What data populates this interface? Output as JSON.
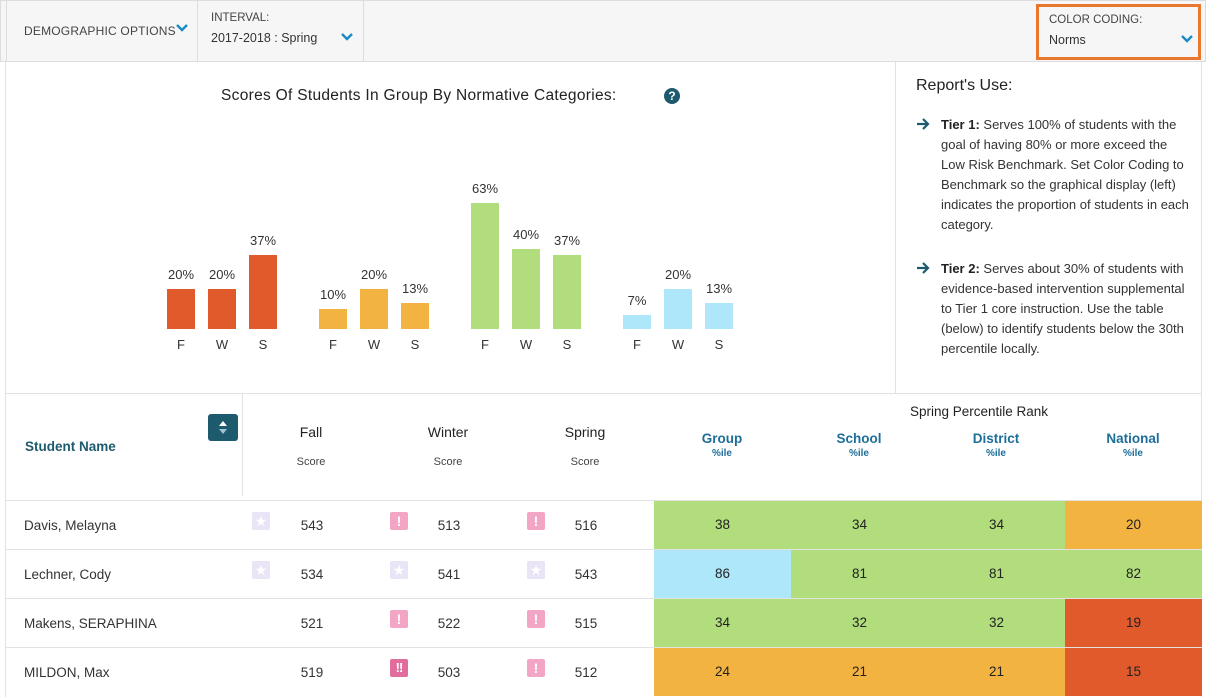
{
  "toolbar": {
    "demographic_label": "DEMOGRAPHIC OPTIONS",
    "interval_label": "INTERVAL:",
    "interval_value": "2017-2018 : Spring",
    "color_coding_label": "COLOR CODING:",
    "color_coding_value": "Norms",
    "chevron_icon": "chevron-down-icon"
  },
  "chart_data": {
    "type": "bar",
    "title": "Scores Of Students In Group By Normative Categories:",
    "help_icon": "question-circle-icon",
    "categories": [
      "F",
      "W",
      "S"
    ],
    "unit": "%",
    "ylim": [
      0,
      70
    ],
    "series": [
      {
        "values": [
          20,
          20,
          37
        ],
        "labels": [
          "20%",
          "20%",
          "37%"
        ],
        "color": "#e05a2b"
      },
      {
        "values": [
          10,
          20,
          13
        ],
        "labels": [
          "10%",
          "20%",
          "13%"
        ],
        "color": "#f3b341"
      },
      {
        "values": [
          63,
          40,
          37
        ],
        "labels": [
          "63%",
          "40%",
          "37%"
        ],
        "color": "#b1dd7d"
      },
      {
        "values": [
          7,
          20,
          13
        ],
        "labels": [
          "7%",
          "20%",
          "13%"
        ],
        "color": "#aee6fa"
      }
    ]
  },
  "report_use": {
    "title": "Report's Use:",
    "arrow_icon": "arrow-right-icon",
    "tiers": [
      {
        "label": "Tier 1:",
        "text": " Serves 100% of students with the goal of having 80% or more exceed the Low Risk Benchmark. Set Color Coding to Benchmark so the graphical display (left) indicates the proportion of students in each category."
      },
      {
        "label": "Tier 2:",
        "text": " Serves about 30% of students with evidence-based intervention supplemental to Tier 1 core instruction. Use the table (below) to identify students below the 30th percentile locally."
      }
    ]
  },
  "table": {
    "name_header": "Student Name",
    "sort_icon": "sort-icon",
    "score_columns": [
      {
        "label": "Fall",
        "sub": "Score"
      },
      {
        "label": "Winter",
        "sub": "Score"
      },
      {
        "label": "Spring",
        "sub": "Score"
      }
    ],
    "percentile_group_header": "Spring Percentile Rank",
    "percentile_columns": [
      {
        "label": "Group",
        "sub": "%ile"
      },
      {
        "label": "School",
        "sub": "%ile"
      },
      {
        "label": "District",
        "sub": "%ile"
      },
      {
        "label": "National",
        "sub": "%ile"
      }
    ],
    "colors": {
      "green": "#b1dd7d",
      "orange": "#f3b341",
      "red": "#e05a2b",
      "blue": "#aee6fa"
    },
    "rows": [
      {
        "name": "Davis, Melayna",
        "scores": [
          {
            "mark": "star",
            "value": "543"
          },
          {
            "mark": "warn",
            "value": "513"
          },
          {
            "mark": "warn",
            "value": "516"
          }
        ],
        "percentiles": [
          {
            "value": "38",
            "color": "green"
          },
          {
            "value": "34",
            "color": "green"
          },
          {
            "value": "34",
            "color": "green"
          },
          {
            "value": "20",
            "color": "orange"
          }
        ]
      },
      {
        "name": "Lechner, Cody",
        "scores": [
          {
            "mark": "star",
            "value": "534"
          },
          {
            "mark": "star",
            "value": "541"
          },
          {
            "mark": "star",
            "value": "543"
          }
        ],
        "percentiles": [
          {
            "value": "86",
            "color": "blue"
          },
          {
            "value": "81",
            "color": "green"
          },
          {
            "value": "81",
            "color": "green"
          },
          {
            "value": "82",
            "color": "green"
          }
        ]
      },
      {
        "name": "Makens, SERAPHINA",
        "scores": [
          {
            "mark": "",
            "value": "521"
          },
          {
            "mark": "warn",
            "value": "522"
          },
          {
            "mark": "warn",
            "value": "515"
          }
        ],
        "percentiles": [
          {
            "value": "34",
            "color": "green"
          },
          {
            "value": "32",
            "color": "green"
          },
          {
            "value": "32",
            "color": "green"
          },
          {
            "value": "19",
            "color": "red"
          }
        ]
      },
      {
        "name": "MILDON, Max",
        "scores": [
          {
            "mark": "",
            "value": "519"
          },
          {
            "mark": "warn2",
            "value": "503"
          },
          {
            "mark": "warn",
            "value": "512"
          }
        ],
        "percentiles": [
          {
            "value": "24",
            "color": "orange"
          },
          {
            "value": "21",
            "color": "orange"
          },
          {
            "value": "21",
            "color": "orange"
          },
          {
            "value": "15",
            "color": "red"
          }
        ]
      }
    ]
  }
}
